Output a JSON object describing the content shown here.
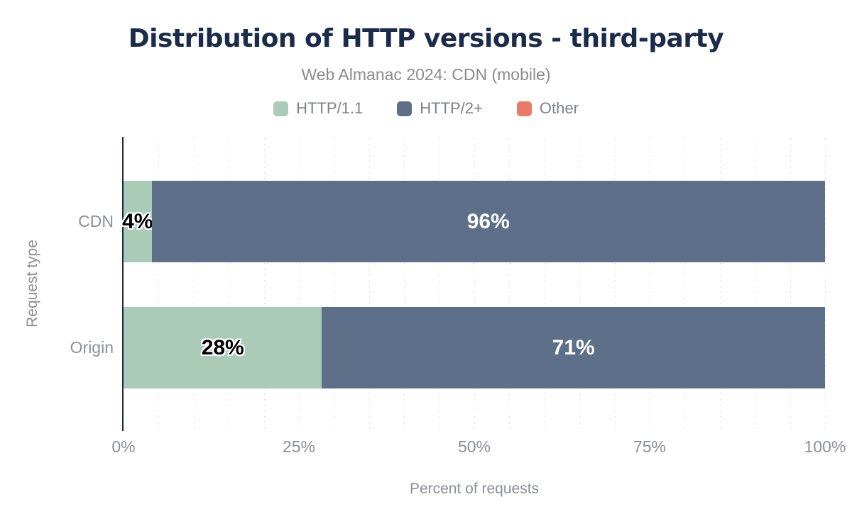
{
  "chart_data": {
    "type": "bar",
    "orientation": "horizontal",
    "stacked": true,
    "title": "Distribution of HTTP versions - third-party",
    "subtitle": "Web Almanac 2024: CDN (mobile)",
    "categories": [
      "CDN",
      "Origin"
    ],
    "series": [
      {
        "name": "HTTP/1.1",
        "color": "#a9cbb8",
        "label_color": "#000000",
        "values": [
          4,
          28
        ]
      },
      {
        "name": "HTTP/2+",
        "color": "#5e7089",
        "label_color": "#ffffff",
        "values": [
          96,
          71
        ]
      },
      {
        "name": "Other",
        "color": "#ea7a68",
        "label_color": "#ffffff",
        "values": [
          0,
          0
        ]
      }
    ],
    "xlabel": "Percent of requests",
    "ylabel": "Request type",
    "xlim": [
      0,
      100
    ],
    "xticks": [
      0,
      25,
      50,
      75,
      100
    ],
    "xtick_labels": [
      "0%",
      "25%",
      "50%",
      "75%",
      "100%"
    ],
    "value_suffix": "%",
    "grid": "dotted vertical minor gridlines every 5%",
    "legend_position": "top",
    "colors": {
      "title_text": "#1b2b4a",
      "axis_line": "#1b2b4a",
      "muted_text": "#8a8e95",
      "gridline": "#d2d5d9"
    }
  }
}
